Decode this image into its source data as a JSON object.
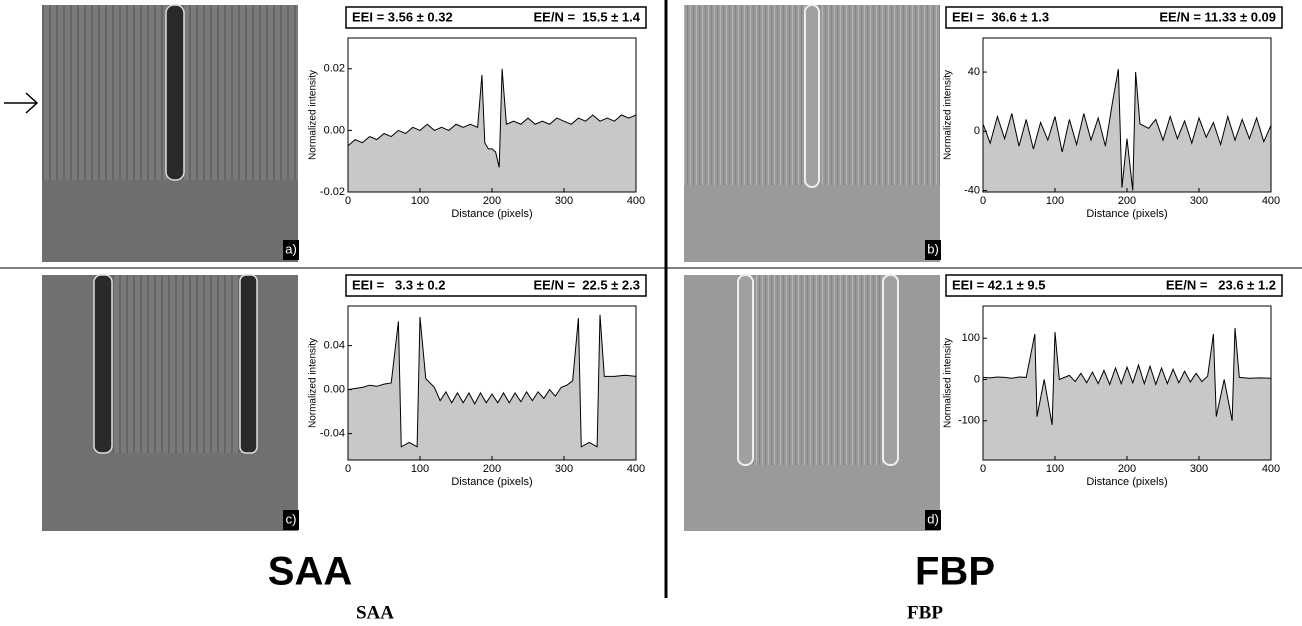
{
  "chart_data": [
    {
      "type": "area",
      "panel_label": "a)",
      "eei": "EEI = 3.56 ± 0.32",
      "een": "EE/N =  15.5 ± 1.4",
      "ylabel": "Normalized intensity",
      "xlabel": "Distance (pixels)",
      "color": "#000000",
      "fill": "#c8c8c8",
      "xlim": [
        0,
        400
      ],
      "xticks": [
        0,
        100,
        200,
        300,
        400
      ],
      "ylim": [
        -0.02,
        0.03
      ],
      "yticks": [
        -0.02,
        {
          "value": 0,
          "label": "0.00"
        },
        0.02
      ],
      "x": [
        0,
        10,
        20,
        30,
        40,
        50,
        60,
        70,
        80,
        90,
        100,
        110,
        120,
        130,
        140,
        150,
        160,
        170,
        180,
        186,
        190,
        195,
        200,
        205,
        210,
        214,
        220,
        230,
        240,
        250,
        260,
        270,
        280,
        290,
        300,
        310,
        320,
        330,
        340,
        350,
        360,
        370,
        380,
        390,
        400
      ],
      "values": [
        -0.005,
        -0.003,
        -0.004,
        -0.002,
        -0.003,
        -0.001,
        -0.002,
        0.0,
        -0.001,
        0.001,
        0.0,
        0.002,
        0.0,
        0.001,
        0.0,
        0.002,
        0.001,
        0.002,
        0.001,
        0.018,
        -0.004,
        -0.006,
        -0.006,
        -0.007,
        -0.012,
        0.02,
        0.002,
        0.003,
        0.002,
        0.004,
        0.002,
        0.003,
        0.002,
        0.004,
        0.003,
        0.002,
        0.004,
        0.003,
        0.005,
        0.003,
        0.004,
        0.003,
        0.005,
        0.004,
        0.005
      ]
    },
    {
      "type": "area",
      "panel_label": "b)",
      "eei": "EEI =  36.6 ± 1.3",
      "een": "EE/N = 11.33 ± 0.09",
      "ylabel": "Normalized intensity",
      "xlabel": "Distance (pixels)",
      "color": "#000000",
      "fill": "#c8c8c8",
      "xlim": [
        0,
        400
      ],
      "xticks": [
        0,
        100,
        200,
        300,
        400
      ],
      "ylim": [
        -41,
        63
      ],
      "yticks": [
        -40,
        0,
        40
      ],
      "x": [
        0,
        10,
        20,
        30,
        40,
        50,
        60,
        70,
        80,
        90,
        100,
        110,
        120,
        130,
        140,
        150,
        160,
        170,
        180,
        188,
        193,
        200,
        208,
        212,
        218,
        230,
        240,
        250,
        260,
        270,
        280,
        290,
        300,
        310,
        320,
        330,
        340,
        350,
        360,
        370,
        380,
        390,
        400
      ],
      "values": [
        5,
        -8,
        10,
        -5,
        12,
        -10,
        8,
        -12,
        6,
        -6,
        10,
        -14,
        8,
        -9,
        12,
        -6,
        9,
        -10,
        20,
        42,
        -38,
        -5,
        -40,
        40,
        5,
        2,
        8,
        -6,
        10,
        -5,
        7,
        -8,
        9,
        -4,
        6,
        -9,
        10,
        -6,
        8,
        -5,
        9,
        -7,
        4
      ]
    },
    {
      "type": "area",
      "panel_label": "c)",
      "eei": "EEI =   3.3 ± 0.2",
      "een": "EE/N =  22.5 ± 2.3",
      "ylabel": "Normalized intensity",
      "xlabel": "Distance (pixels)",
      "color": "#000000",
      "fill": "#c8c8c8",
      "xlim": [
        0,
        400
      ],
      "xticks": [
        0,
        100,
        200,
        300,
        400
      ],
      "ylim": [
        -0.064,
        0.076
      ],
      "yticks": [
        -0.04,
        {
          "value": 0,
          "label": "0.00"
        },
        0.04
      ],
      "x": [
        0,
        10,
        20,
        30,
        40,
        50,
        60,
        70,
        74,
        85,
        96,
        100,
        108,
        120,
        128,
        136,
        144,
        152,
        160,
        168,
        176,
        184,
        192,
        200,
        208,
        216,
        224,
        232,
        240,
        248,
        256,
        264,
        272,
        280,
        288,
        296,
        304,
        312,
        320,
        324,
        335,
        346,
        350,
        356,
        370,
        385,
        400
      ],
      "values": [
        0.0,
        0.001,
        0.002,
        0.004,
        0.003,
        0.005,
        0.006,
        0.062,
        -0.052,
        -0.048,
        -0.052,
        0.066,
        0.01,
        0.002,
        -0.01,
        -0.002,
        -0.012,
        -0.003,
        -0.012,
        -0.003,
        -0.013,
        -0.003,
        -0.012,
        -0.004,
        -0.012,
        -0.003,
        -0.012,
        -0.003,
        -0.011,
        -0.002,
        -0.01,
        -0.002,
        -0.008,
        0.0,
        -0.006,
        0.002,
        0.004,
        0.008,
        0.065,
        -0.052,
        -0.048,
        -0.052,
        0.068,
        0.012,
        0.012,
        0.013,
        0.012
      ]
    },
    {
      "type": "area",
      "panel_label": "d)",
      "eei": "EEI = 42.1 ± 9.5",
      "een": "EE/N =   23.6 ± 1.2",
      "ylabel": "Normalised intensity",
      "xlabel": "Distance (pixels)",
      "color": "#000000",
      "fill": "#c8c8c8",
      "xlim": [
        0,
        400
      ],
      "xticks": [
        0,
        100,
        200,
        300,
        400
      ],
      "ylim": [
        -195,
        178
      ],
      "yticks": [
        -100,
        0,
        100
      ],
      "x": [
        0,
        10,
        20,
        30,
        40,
        50,
        60,
        72,
        75,
        85,
        96,
        100,
        106,
        120,
        128,
        136,
        144,
        152,
        160,
        168,
        176,
        184,
        192,
        200,
        208,
        216,
        224,
        232,
        240,
        248,
        256,
        264,
        272,
        280,
        288,
        296,
        304,
        312,
        320,
        324,
        335,
        346,
        350,
        356,
        370,
        385,
        400
      ],
      "values": [
        5,
        4,
        6,
        5,
        3,
        6,
        5,
        110,
        -90,
        0,
        -110,
        115,
        0,
        10,
        -5,
        15,
        -8,
        18,
        -10,
        22,
        -12,
        28,
        -10,
        30,
        -8,
        35,
        -10,
        32,
        -12,
        28,
        -10,
        25,
        -8,
        20,
        -6,
        15,
        -5,
        8,
        110,
        -90,
        0,
        -100,
        125,
        5,
        3,
        4,
        3
      ]
    }
  ],
  "labels": {
    "saa": "SAA",
    "fbp": "FBP",
    "saa_caption": "SAA",
    "fbp_caption": "FBP"
  }
}
